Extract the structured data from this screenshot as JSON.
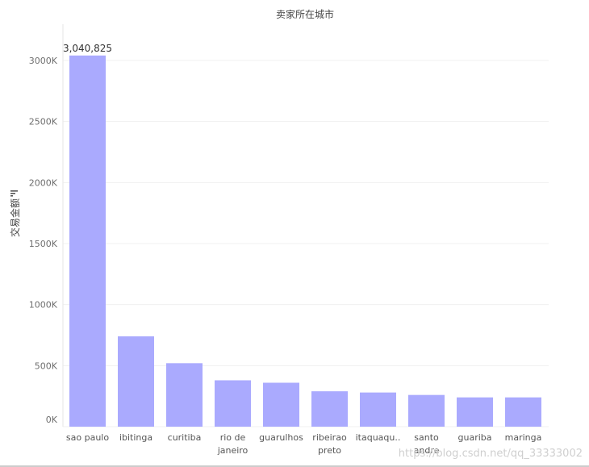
{
  "chart_data": {
    "type": "bar",
    "title": "卖家所在城市",
    "xlabel": "",
    "ylabel": "交易金额",
    "categories": [
      [
        "sao paulo"
      ],
      [
        "ibitinga"
      ],
      [
        "curitiba"
      ],
      [
        "rio de",
        "janeiro"
      ],
      [
        "guarulhos"
      ],
      [
        "ribeirao",
        "preto"
      ],
      [
        "itaquaqu.."
      ],
      [
        "santo",
        "andre"
      ],
      [
        "guariba"
      ],
      [
        "maringa"
      ]
    ],
    "values": [
      3040825,
      740000,
      520000,
      380000,
      360000,
      290000,
      280000,
      260000,
      240000,
      240000
    ],
    "ylim": [
      0,
      3000000
    ],
    "yticks": [
      {
        "value": 0,
        "label": "0K"
      },
      {
        "value": 500000,
        "label": "500K"
      },
      {
        "value": 1000000,
        "label": "1000K"
      },
      {
        "value": 1500000,
        "label": "1500K"
      },
      {
        "value": 2000000,
        "label": "2000K"
      },
      {
        "value": 2500000,
        "label": "2500K"
      },
      {
        "value": 3000000,
        "label": "3000K"
      }
    ],
    "data_labels": [
      {
        "index": 0,
        "text": "3,040,825"
      }
    ],
    "grid": true,
    "bar_color": "#aaaafe",
    "grid_color": "#f0f0f0"
  },
  "watermark": "https://blog.csdn.net/qq_33333002",
  "sort_icon": "sort-descending-icon"
}
